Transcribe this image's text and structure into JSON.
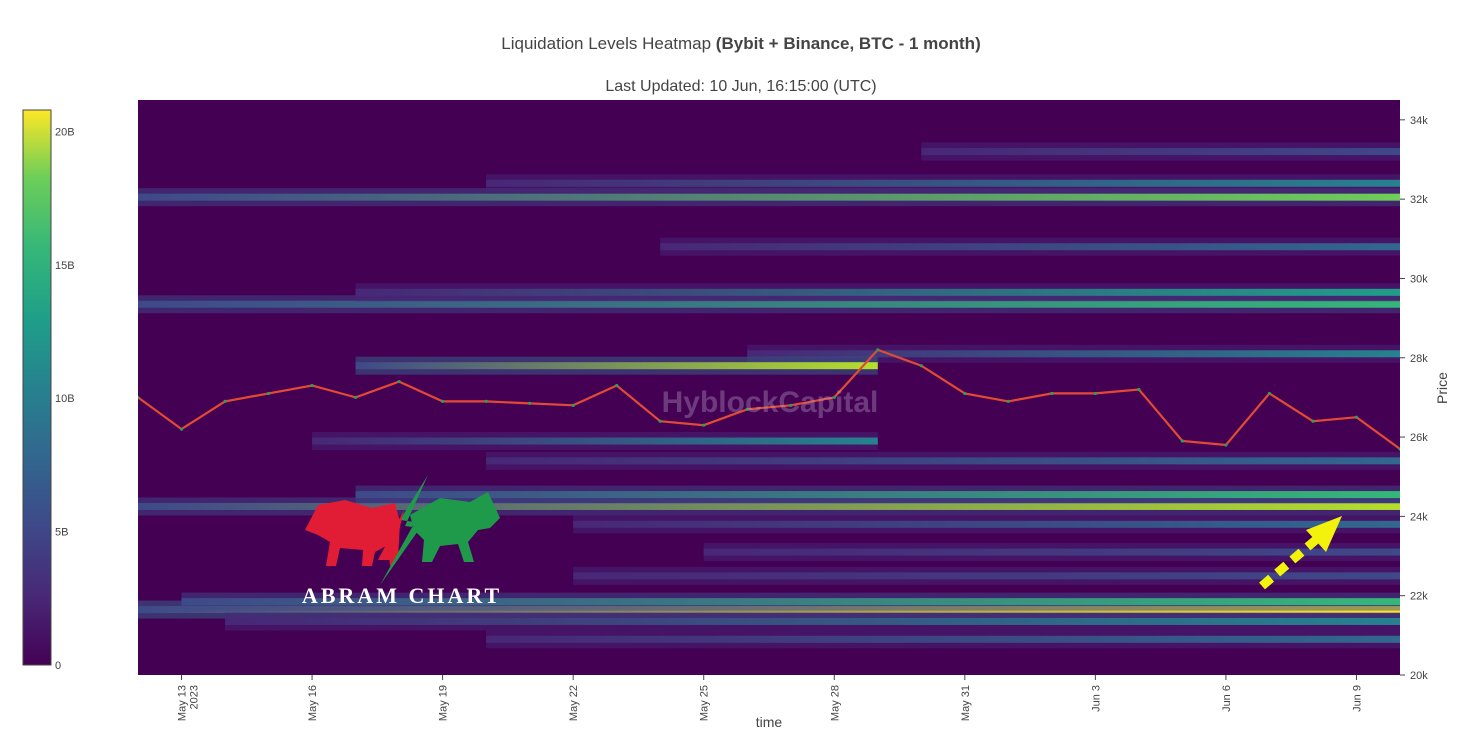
{
  "header": {
    "title_plain": "Liquidation Levels Heatmap ",
    "title_bold": "(Bybit + Binance, BTC - 1 month)",
    "subtitle": "Last Updated: 10 Jun, 16:15:00 (UTC)"
  },
  "watermark": "HyblockCapital",
  "logo": {
    "text": "ABRAM CHART"
  },
  "chart_data": {
    "type": "heatmap",
    "title": "Liquidation Levels Heatmap (Bybit + Binance, BTC - 1 month)",
    "subtitle": "Last Updated: 10 Jun, 16:15:00 (UTC)",
    "xlabel": "time",
    "ylabel": "Price",
    "x_range": [
      "2023-05-12",
      "2023-06-10"
    ],
    "x_ticks": [
      {
        "date": "2023-05-13",
        "label": "May 13",
        "label2": "2023"
      },
      {
        "date": "2023-05-16",
        "label": "May 16"
      },
      {
        "date": "2023-05-19",
        "label": "May 19"
      },
      {
        "date": "2023-05-22",
        "label": "May 22"
      },
      {
        "date": "2023-05-25",
        "label": "May 25"
      },
      {
        "date": "2023-05-28",
        "label": "May 28"
      },
      {
        "date": "2023-05-31",
        "label": "May 31"
      },
      {
        "date": "2023-06-03",
        "label": "Jun 3"
      },
      {
        "date": "2023-06-06",
        "label": "Jun 6"
      },
      {
        "date": "2023-06-09",
        "label": "Jun 9"
      }
    ],
    "y_range": [
      20000,
      34500
    ],
    "y_ticks": [
      {
        "value": 20000,
        "label": "20k"
      },
      {
        "value": 22000,
        "label": "22k"
      },
      {
        "value": 24000,
        "label": "24k"
      },
      {
        "value": 26000,
        "label": "26k"
      },
      {
        "value": 28000,
        "label": "28k"
      },
      {
        "value": 30000,
        "label": "30k"
      },
      {
        "value": 32000,
        "label": "32k"
      },
      {
        "value": 34000,
        "label": "34k"
      }
    ],
    "colorbar": {
      "range": [
        0,
        20800000000
      ],
      "ticks": [
        {
          "value": 0,
          "label": "0"
        },
        {
          "value": 5000000000,
          "label": "5B"
        },
        {
          "value": 10000000000,
          "label": "10B"
        },
        {
          "value": 15000000000,
          "label": "15B"
        },
        {
          "value": 20000000000,
          "label": "20B"
        }
      ],
      "colorscale": "viridis"
    },
    "liquidation_bands": [
      {
        "price": 21650,
        "start": "2023-05-12",
        "peak_value": 20000000000
      },
      {
        "price": 21850,
        "start": "2023-05-13",
        "peak_value": 14000000000
      },
      {
        "price": 21350,
        "start": "2023-05-14",
        "peak_value": 9000000000
      },
      {
        "price": 24250,
        "start": "2023-05-12",
        "peak_value": 19000000000
      },
      {
        "price": 24550,
        "start": "2023-05-17",
        "peak_value": 15000000000
      },
      {
        "price": 23800,
        "start": "2023-05-22",
        "peak_value": 7000000000
      },
      {
        "price": 32050,
        "start": "2023-05-12",
        "peak_value": 16000000000
      },
      {
        "price": 32400,
        "start": "2023-05-20",
        "peak_value": 10000000000
      },
      {
        "price": 29350,
        "start": "2023-05-12",
        "peak_value": 14000000000
      },
      {
        "price": 29650,
        "start": "2023-05-17",
        "peak_value": 11000000000
      },
      {
        "price": 28100,
        "start": "2023-05-26",
        "peak_value": 10000000000
      },
      {
        "price": 27800,
        "start": "2023-05-17",
        "end": "2023-05-29",
        "peak_value": 19500000000
      },
      {
        "price": 25900,
        "start": "2023-05-16",
        "end": "2023-05-29",
        "peak_value": 9000000000
      },
      {
        "price": 25400,
        "start": "2023-05-20",
        "peak_value": 6000000000
      },
      {
        "price": 30800,
        "start": "2023-05-24",
        "peak_value": 6000000000
      },
      {
        "price": 33200,
        "start": "2023-05-30",
        "peak_value": 5000000000
      },
      {
        "price": 23100,
        "start": "2023-05-25",
        "peak_value": 5000000000
      },
      {
        "price": 22500,
        "start": "2023-05-22",
        "peak_value": 5000000000
      },
      {
        "price": 20900,
        "start": "2023-05-20",
        "peak_value": 6000000000
      }
    ],
    "price_series": {
      "name": "BTC",
      "x": [
        "2023-05-12",
        "2023-05-13",
        "2023-05-14",
        "2023-05-15",
        "2023-05-16",
        "2023-05-17",
        "2023-05-18",
        "2023-05-19",
        "2023-05-20",
        "2023-05-21",
        "2023-05-22",
        "2023-05-23",
        "2023-05-24",
        "2023-05-25",
        "2023-05-26",
        "2023-05-27",
        "2023-05-28",
        "2023-05-29",
        "2023-05-30",
        "2023-05-31",
        "2023-06-01",
        "2023-06-02",
        "2023-06-03",
        "2023-06-04",
        "2023-06-05",
        "2023-06-06",
        "2023-06-07",
        "2023-06-08",
        "2023-06-09",
        "2023-06-10"
      ],
      "y": [
        27000,
        26200,
        26900,
        27100,
        27300,
        27000,
        27400,
        26900,
        26900,
        26850,
        26800,
        27300,
        26400,
        26300,
        26700,
        26800,
        27000,
        28200,
        27800,
        27100,
        26900,
        27100,
        27100,
        27200,
        25900,
        25800,
        27100,
        26400,
        26500,
        25700
      ]
    }
  }
}
